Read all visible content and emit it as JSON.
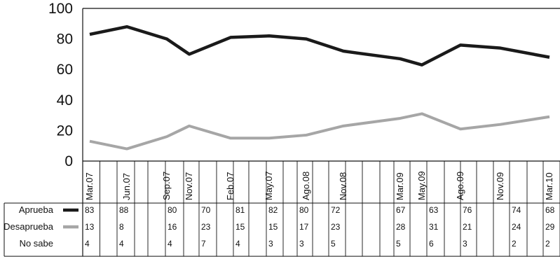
{
  "chart_data": {
    "type": "line",
    "title": "",
    "xlabel": "",
    "ylabel": "",
    "ylim": [
      0,
      100
    ],
    "yticks": [
      0,
      20,
      40,
      60,
      80,
      100
    ],
    "grid": false,
    "categories": [
      "Mar.07",
      "Jun.07",
      "Sep.07",
      "Nov.07",
      "Feb.07",
      "May.07",
      "Ago.08",
      "Nov.08",
      "Mar.09",
      "May.09",
      "Ago.09",
      "Nov.09",
      "Mar.10"
    ],
    "series": [
      {
        "name": "Aprueba",
        "color": "#1a1a1a",
        "values": [
          83,
          88,
          80,
          70,
          81,
          82,
          80,
          72,
          67,
          63,
          76,
          74,
          68
        ]
      },
      {
        "name": "Desaprueba",
        "color": "#a6a6a6",
        "values": [
          13,
          8,
          16,
          23,
          15,
          15,
          17,
          23,
          28,
          31,
          21,
          24,
          29
        ]
      },
      {
        "name": "No sabe",
        "values": [
          4,
          4,
          4,
          7,
          4,
          3,
          3,
          5,
          5,
          6,
          3,
          2,
          2
        ]
      }
    ],
    "table_labels": [
      "Aprueba",
      "Desaprueba",
      "No sabe"
    ],
    "table_displayed": [
      [
        "83",
        "88",
        "80",
        "70",
        "81",
        "82",
        "80",
        "72",
        "67",
        "63",
        "76",
        "74",
        "68"
      ],
      [
        "13",
        "8",
        "16",
        "23",
        "15",
        "15",
        "17",
        "23",
        "28",
        "31",
        "21",
        "24",
        "29"
      ],
      [
        "4",
        "4",
        "4",
        "7",
        "4",
        "3",
        "3",
        "5",
        "5",
        "6",
        "3",
        "2",
        "2"
      ]
    ]
  }
}
